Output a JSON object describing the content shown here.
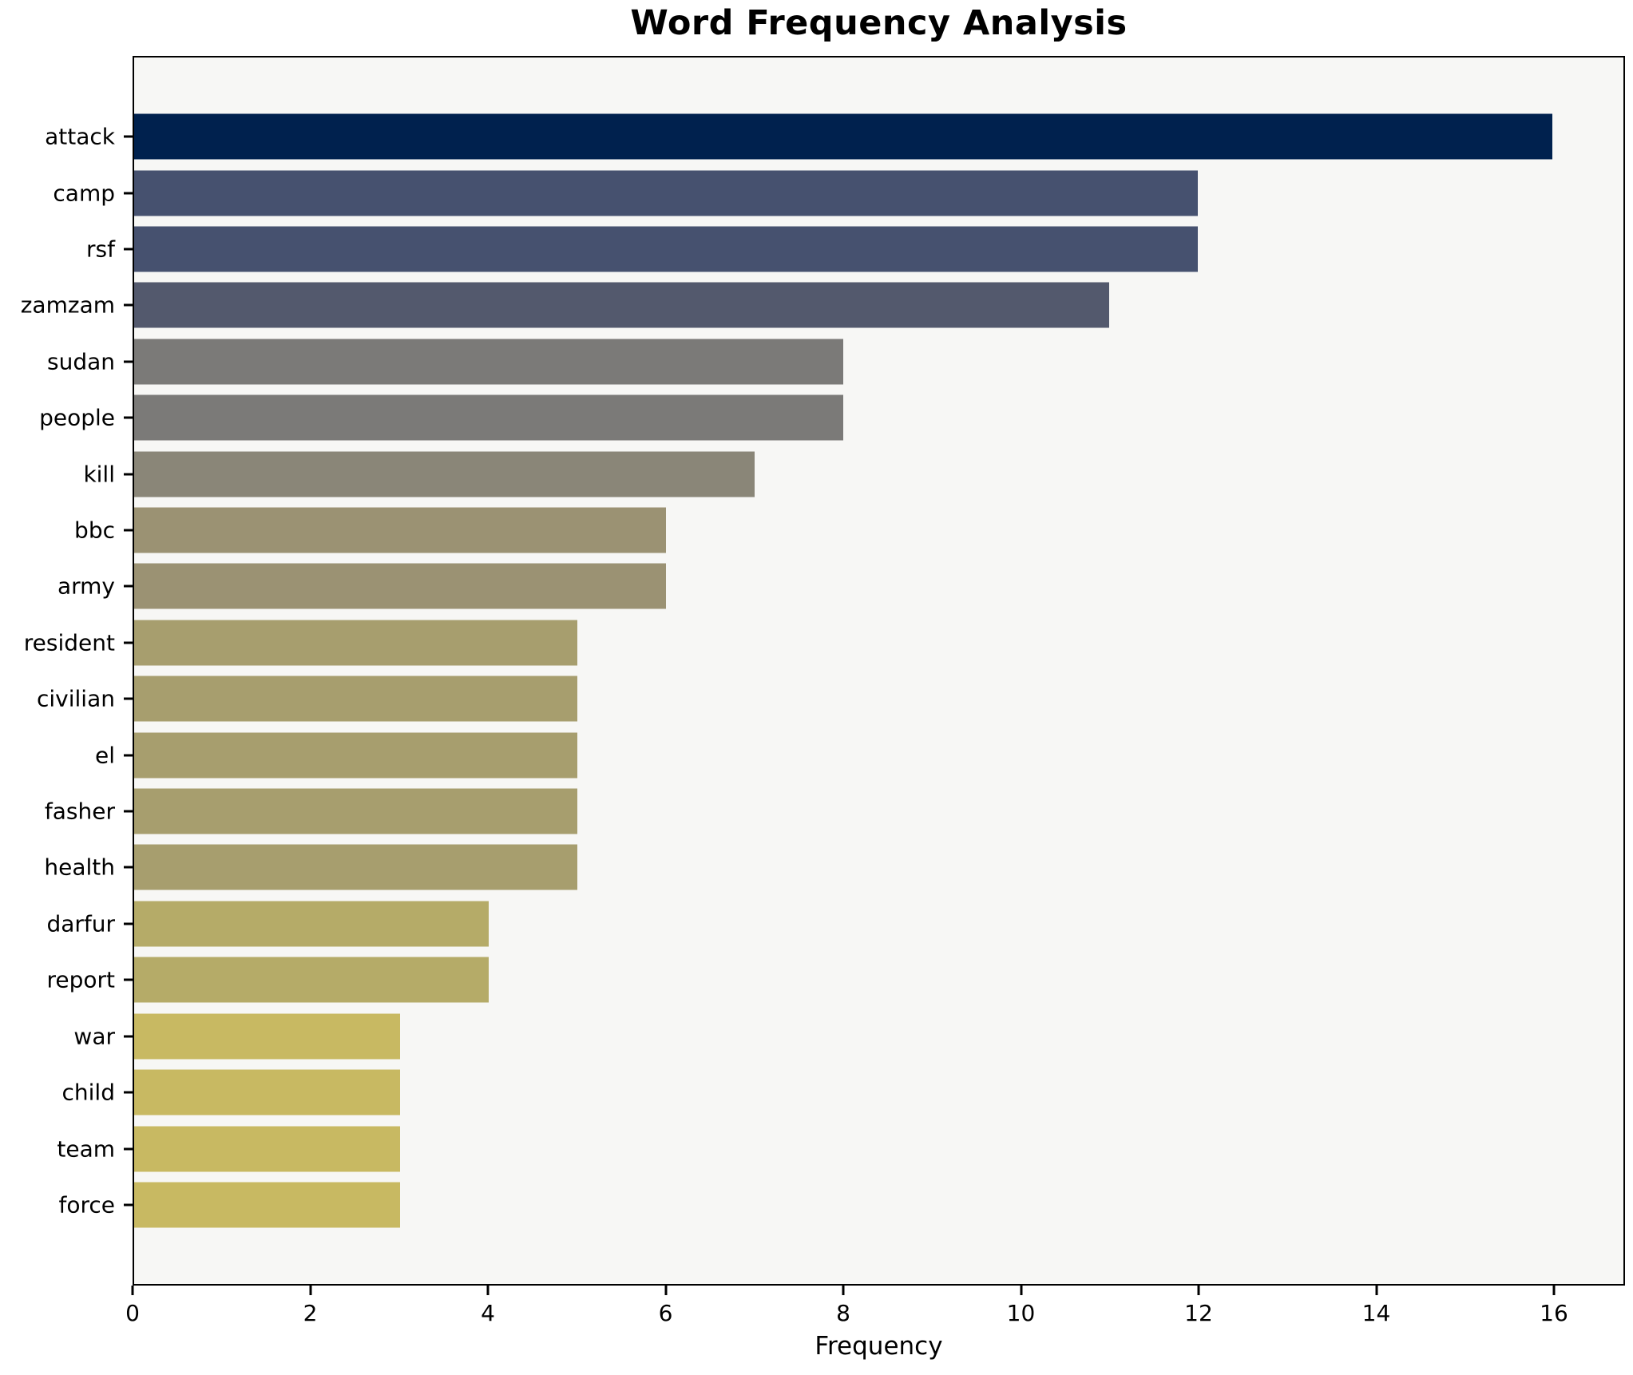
{
  "chart_data": {
    "type": "bar",
    "orientation": "horizontal",
    "title": "Word Frequency Analysis",
    "xlabel": "Frequency",
    "ylabel": "",
    "categories": [
      "attack",
      "camp",
      "rsf",
      "zamzam",
      "sudan",
      "people",
      "kill",
      "bbc",
      "army",
      "resident",
      "civilian",
      "el",
      "fasher",
      "health",
      "darfur",
      "report",
      "war",
      "child",
      "team",
      "force"
    ],
    "values": [
      16,
      12,
      12,
      11,
      8,
      8,
      7,
      6,
      6,
      5,
      5,
      5,
      5,
      5,
      4,
      4,
      3,
      3,
      3,
      3
    ],
    "bar_colors": [
      "#00214e",
      "#46516f",
      "#46516f",
      "#53596d",
      "#7b7a78",
      "#7b7a78",
      "#8a8678",
      "#9b9273",
      "#9b9273",
      "#a79e6e",
      "#a79e6e",
      "#a79e6e",
      "#a79e6e",
      "#a79e6e",
      "#b5ab68",
      "#b5ab68",
      "#c8b962",
      "#c8b962",
      "#c8b962",
      "#c8b962"
    ],
    "xlim": [
      0,
      16.8
    ],
    "xticks": [
      0,
      2,
      4,
      6,
      8,
      10,
      12,
      14,
      16
    ],
    "grid": false,
    "legend": "none",
    "plot_background": "#f7f7f5",
    "figure_background": "#ffffff",
    "spine_color": "#000000",
    "text_color": "#000000"
  }
}
